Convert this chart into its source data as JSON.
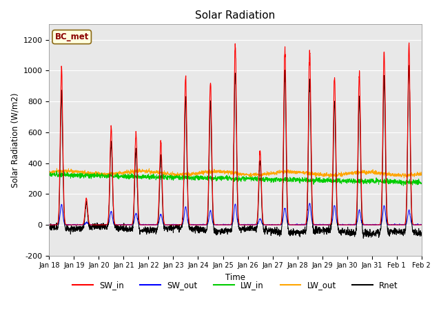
{
  "title": "Solar Radiation",
  "xlabel": "Time",
  "ylabel": "Solar Radiation (W/m2)",
  "ylim": [
    -200,
    1300
  ],
  "yticks": [
    -200,
    0,
    200,
    400,
    600,
    800,
    1000,
    1200
  ],
  "xtick_labels": [
    "Jan 18",
    "Jan 19",
    "Jan 20",
    "Jan 21",
    "Jan 22",
    "Jan 23",
    "Jan 24",
    "Jan 25",
    "Jan 26",
    "Jan 27",
    "Jan 28",
    "Jan 29",
    "Jan 30",
    "Jan 31",
    "Feb 1",
    "Feb 2"
  ],
  "annotation_text": "BC_met",
  "annotation_color": "#8B0000",
  "annotation_bg": "#FFFFE0",
  "annotation_edge": "#8B6914",
  "plot_bg": "#E8E8E8",
  "grid_color": "#FFFFFF",
  "legend_entries": [
    "SW_in",
    "SW_out",
    "LW_in",
    "LW_out",
    "Rnet"
  ],
  "line_colors": {
    "SW_in": "#FF0000",
    "SW_out": "#0000FF",
    "LW_in": "#00CC00",
    "LW_out": "#FFA500",
    "Rnet": "#000000"
  },
  "SW_in_peaks": [
    1010,
    170,
    630,
    600,
    540,
    960,
    940,
    1170,
    490,
    1140,
    1140,
    960,
    970,
    1130,
    1160
  ],
  "num_days": 15,
  "pts_per_day": 144
}
